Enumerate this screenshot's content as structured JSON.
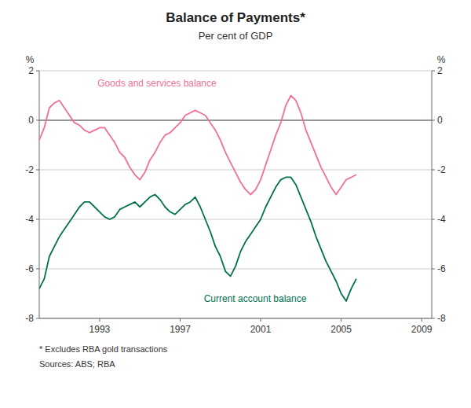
{
  "chart_data": {
    "type": "line",
    "title": "Balance of Payments*",
    "subtitle": "Per cent of GDP",
    "footnote": "*  Excludes RBA gold transactions",
    "source": "Sources: ABS; RBA",
    "ylabel": "%",
    "y2label": "%",
    "grid": true,
    "xlim": [
      1990.0,
      2009.5
    ],
    "xticks": [
      1993,
      1997,
      2001,
      2005,
      2009
    ],
    "ylim": [
      -8,
      2
    ],
    "yticks": [
      -8,
      -6,
      -4,
      -2,
      0,
      2
    ],
    "y2lim": [
      -8,
      2
    ],
    "y2ticks": [
      -8,
      -6,
      -4,
      -2,
      0,
      2
    ],
    "x": [
      1990,
      1990.25,
      1990.5,
      1990.75,
      1991,
      1991.25,
      1991.5,
      1991.75,
      1992,
      1992.25,
      1992.5,
      1992.75,
      1993,
      1993.25,
      1993.5,
      1993.75,
      1994,
      1994.25,
      1994.5,
      1994.75,
      1995,
      1995.25,
      1995.5,
      1995.75,
      1996,
      1996.25,
      1996.5,
      1996.75,
      1997,
      1997.25,
      1997.5,
      1997.75,
      1998,
      1998.25,
      1998.5,
      1998.75,
      1999,
      1999.25,
      1999.5,
      1999.75,
      2000,
      2000.25,
      2000.5,
      2000.75,
      2001,
      2001.25,
      2001.5,
      2001.75,
      2002,
      2002.25,
      2002.5,
      2002.75,
      2003,
      2003.25,
      2003.5,
      2003.75,
      2004,
      2004.25,
      2004.5,
      2004.75,
      2005,
      2005.25,
      2005.5,
      2005.75
    ],
    "series": [
      {
        "name": "Goods and services balance",
        "color": "#f07090",
        "values": [
          -0.8,
          -0.3,
          0.5,
          0.7,
          0.8,
          0.5,
          0.2,
          -0.1,
          -0.2,
          -0.4,
          -0.5,
          -0.4,
          -0.3,
          -0.3,
          -0.6,
          -0.9,
          -1.3,
          -1.5,
          -1.9,
          -2.2,
          -2.4,
          -2.1,
          -1.6,
          -1.3,
          -0.9,
          -0.6,
          -0.5,
          -0.3,
          -0.1,
          0.2,
          0.3,
          0.4,
          0.3,
          0.2,
          -0.1,
          -0.4,
          -0.8,
          -1.3,
          -1.7,
          -2.1,
          -2.5,
          -2.8,
          -3.0,
          -2.8,
          -2.4,
          -1.8,
          -1.2,
          -0.6,
          -0.1,
          0.6,
          1.0,
          0.8,
          0.3,
          -0.4,
          -0.9,
          -1.4,
          -1.9,
          -2.3,
          -2.7,
          -3.0,
          -2.7,
          -2.4,
          -2.3,
          -2.2
        ]
      },
      {
        "name": "Current account balance",
        "color": "#007050",
        "values": [
          -6.8,
          -6.4,
          -5.5,
          -5.1,
          -4.7,
          -4.4,
          -4.1,
          -3.8,
          -3.5,
          -3.3,
          -3.3,
          -3.5,
          -3.7,
          -3.9,
          -4.0,
          -3.9,
          -3.6,
          -3.5,
          -3.4,
          -3.3,
          -3.5,
          -3.3,
          -3.1,
          -3.0,
          -3.2,
          -3.5,
          -3.7,
          -3.8,
          -3.6,
          -3.4,
          -3.3,
          -3.1,
          -3.5,
          -4.0,
          -4.5,
          -5.1,
          -5.5,
          -6.1,
          -6.3,
          -5.9,
          -5.3,
          -4.9,
          -4.6,
          -4.3,
          -4.0,
          -3.5,
          -3.1,
          -2.7,
          -2.4,
          -2.3,
          -2.3,
          -2.6,
          -3.1,
          -3.6,
          -4.1,
          -4.7,
          -5.2,
          -5.7,
          -6.1,
          -6.5,
          -7.0,
          -7.3,
          -6.8,
          -6.4
        ]
      }
    ]
  }
}
